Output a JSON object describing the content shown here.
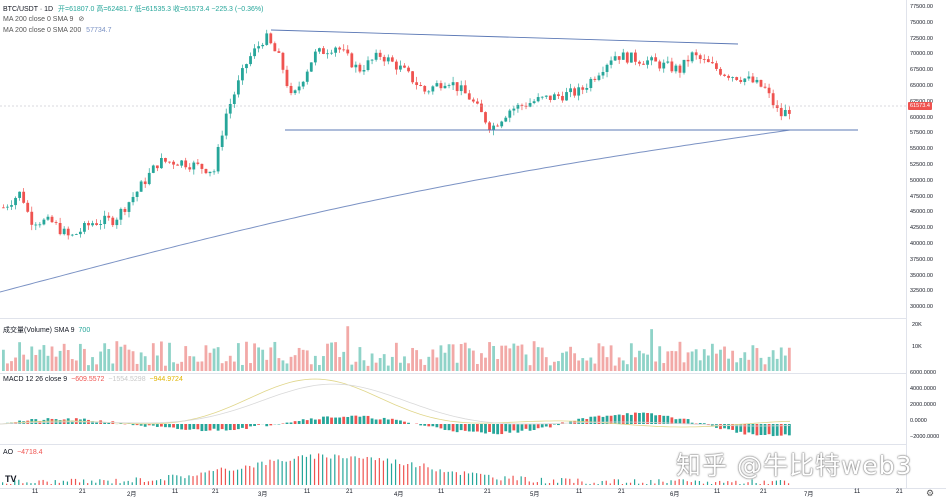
{
  "header": {
    "symbol": "BTC/USDT · 1D",
    "ohlc": "开=61807.0 高=62481.7 低=61535.3 收=61573.4 −225.3 (−0.36%)",
    "ma9_label": "MA 200 close 0 SMA 9",
    "ma200_label": "MA 200 close 0 SMA 200",
    "ma200_value": "57734.7"
  },
  "price_axis": [
    "77500.00",
    "75000.00",
    "72500.00",
    "70000.00",
    "67500.00",
    "65000.00",
    "62500.00",
    "60000.00",
    "57500.00",
    "55000.00",
    "52500.00",
    "50000.00",
    "47500.00",
    "45000.00",
    "42500.00",
    "40000.00",
    "37500.00",
    "35000.00",
    "32500.00",
    "30000.00"
  ],
  "current_price": "61573.4",
  "volume": {
    "label": "成交量(Volume) SMA 9",
    "value": "700",
    "axis": [
      "20K",
      "10K"
    ]
  },
  "macd": {
    "label": "MACD 12 26 close 9",
    "v1": "−609.5572",
    "v2": "−1554.5298",
    "v3": "−944.9724",
    "axis": [
      "6000.0000",
      "4000.0000",
      "2000.0000",
      "0.0000",
      "−2000.0000"
    ]
  },
  "ao": {
    "label": "AO",
    "value": "−4718.4"
  },
  "x_axis": [
    "11",
    "21",
    "2月",
    "11",
    "21",
    "3月",
    "11",
    "21",
    "4月",
    "11",
    "21",
    "5月",
    "11",
    "21",
    "6月",
    "11",
    "21",
    "7月",
    "11",
    "21"
  ],
  "watermark": "知乎 @牛比特web3",
  "colors": {
    "up": "#26a69a",
    "down": "#ef5350",
    "ma": "#7b92c4",
    "grid": "#e0e3eb"
  }
}
